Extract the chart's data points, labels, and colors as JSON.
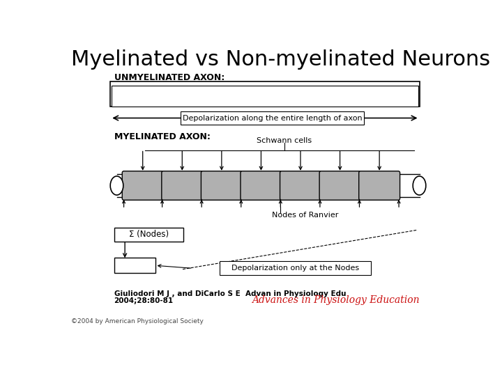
{
  "title": "Myelinated vs Non-myelinated Neurons",
  "title_fontsize": 22,
  "background_color": "#ffffff",
  "unmyelinated_label": "UNMYELINATED AXON:",
  "myelinated_label": "MYELINATED AXON:",
  "schwann_label": "Schwann cells",
  "ranvier_label": "Nodes of Ranvier",
  "depol_full_label": "Depolarization along the entire length of axon",
  "depol_nodes_label": "Depolarization only at the Nodes",
  "sigma_label": "Σ (Nodes)",
  "citation_line1": "Giuliodori M J , and DiCarlo S E  Advan in Physiology Edu",
  "citation_line2": "2004;28:80-81",
  "journal_label": "Advances in Physiology Education",
  "copyright_label": "©2004 by American Physiological Society",
  "myelin_color": "#b0b0b0"
}
